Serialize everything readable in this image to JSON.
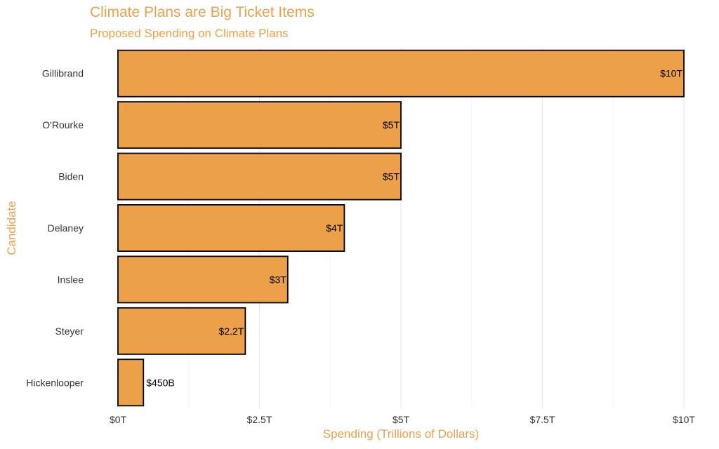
{
  "chart_data": {
    "type": "bar",
    "orientation": "horizontal",
    "title": "Climate Plans are Big Ticket Items",
    "subtitle": "Proposed Spending on Climate Plans",
    "xlabel": "Spending (Trillions of Dollars)",
    "ylabel": "Candidate",
    "categories": [
      "Gillibrand",
      "O'Rourke",
      "Biden",
      "Delaney",
      "Inslee",
      "Steyer",
      "Hickenlooper"
    ],
    "values": [
      10,
      5,
      5,
      4,
      3,
      2.25,
      0.45
    ],
    "data_labels": [
      "$10T",
      "$5T",
      "$5T",
      "$4T",
      "$3T",
      "$2.2T",
      "$450B"
    ],
    "xlim": [
      0,
      10
    ],
    "x_ticks": [
      0,
      2.5,
      5,
      7.5,
      10
    ],
    "x_tick_labels": [
      "$0T",
      "$2.5T",
      "$5T",
      "$7.5T",
      "$10T"
    ],
    "grid": "vertical",
    "bar_color": "#EDA04A",
    "bar_outline": "#000000",
    "text_color": "#EDA04A"
  }
}
